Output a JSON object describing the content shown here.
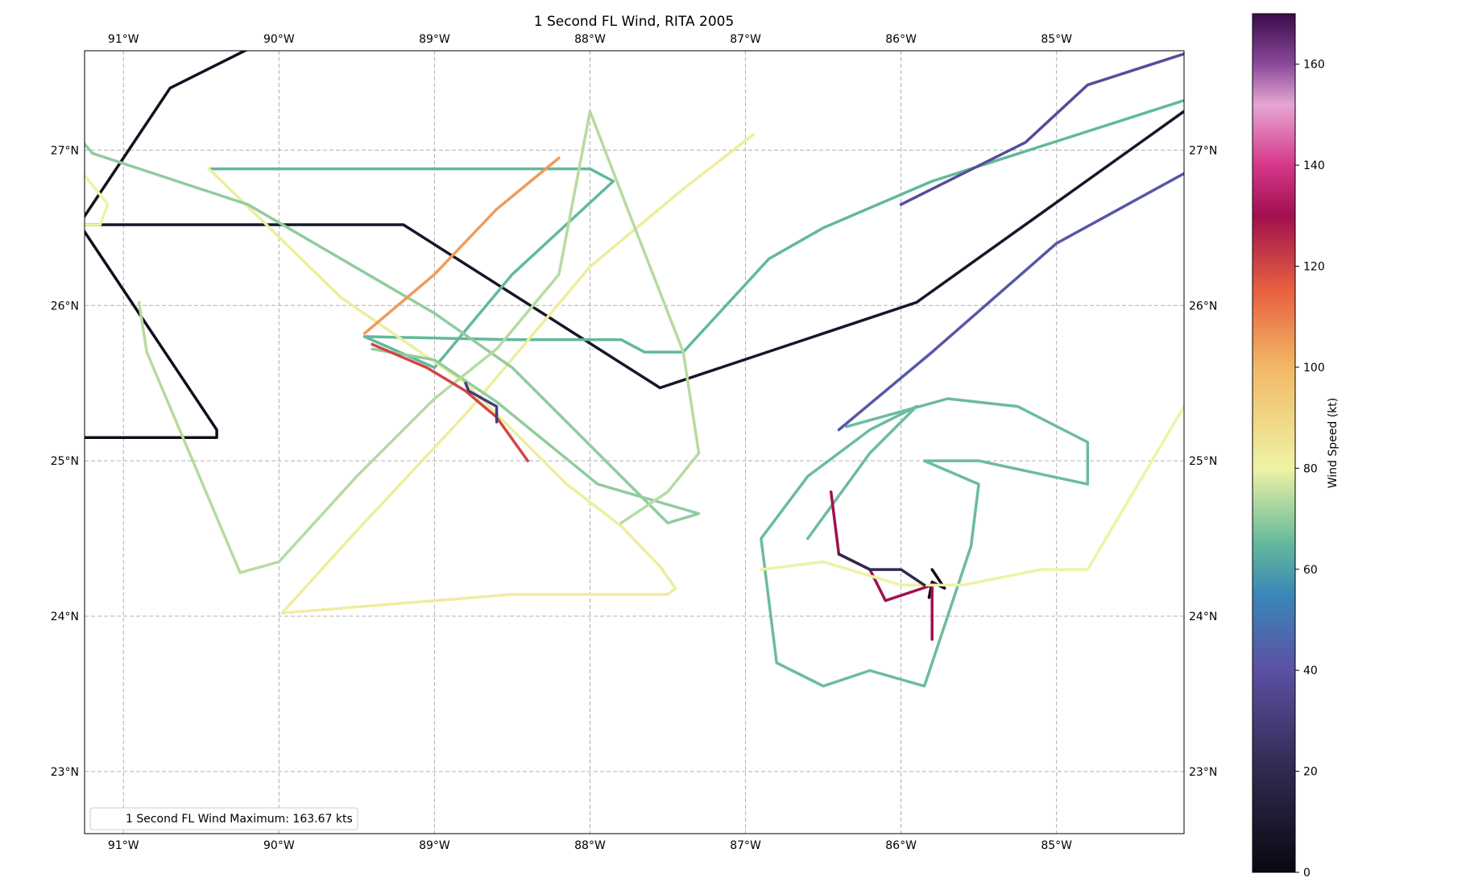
{
  "title": "1 Second FL Wind, RITA 2005",
  "legend_text": "1 Second FL Wind Maximum: 163.67 kts",
  "lon_ticks": [
    {
      "lon": -91,
      "label": "91°W"
    },
    {
      "lon": -90,
      "label": "90°W"
    },
    {
      "lon": -89,
      "label": "89°W"
    },
    {
      "lon": -88,
      "label": "88°W"
    },
    {
      "lon": -87,
      "label": "87°W"
    },
    {
      "lon": -86,
      "label": "86°W"
    },
    {
      "lon": -85,
      "label": "85°W"
    }
  ],
  "lat_ticks": [
    {
      "lat": 27,
      "label": "27°N"
    },
    {
      "lat": 26,
      "label": "26°N"
    },
    {
      "lat": 25,
      "label": "25°N"
    },
    {
      "lat": 24,
      "label": "24°N"
    },
    {
      "lat": 23,
      "label": "23°N"
    }
  ],
  "colorbar": {
    "label": "Wind Speed (kt)",
    "min": 0,
    "max": 170,
    "ticks": [
      0,
      20,
      40,
      60,
      80,
      100,
      120,
      140,
      160
    ],
    "tick_labels": [
      "0",
      "20",
      "40",
      "60",
      "80",
      "100",
      "120",
      "140",
      "160"
    ],
    "stops": [
      {
        "v": 0,
        "color": "#0b0710"
      },
      {
        "v": 20,
        "color": "#2f2a4e"
      },
      {
        "v": 40,
        "color": "#5b50a3"
      },
      {
        "v": 55,
        "color": "#3a87b8"
      },
      {
        "v": 65,
        "color": "#63b89b"
      },
      {
        "v": 80,
        "color": "#eef3a4"
      },
      {
        "v": 100,
        "color": "#f2b866"
      },
      {
        "v": 115,
        "color": "#e8623f"
      },
      {
        "v": 130,
        "color": "#a1104e"
      },
      {
        "v": 140,
        "color": "#d6378a"
      },
      {
        "v": 152,
        "color": "#e6a6d3"
      },
      {
        "v": 160,
        "color": "#8a4a99"
      },
      {
        "v": 170,
        "color": "#3c0a4a"
      }
    ]
  },
  "chart_data": {
    "type": "map",
    "title": "1 Second FL Wind, RITA 2005",
    "xlim": [
      -91.25,
      -84.18
    ],
    "ylim": [
      22.6,
      27.64
    ],
    "grid": true,
    "legend_position": "lower-left",
    "colorbar_range": [
      0,
      170
    ],
    "series": [
      {
        "points": [
          [
            -91.3,
            26.5
          ],
          [
            -90.7,
            27.4
          ],
          [
            -90.2,
            27.65
          ]
        ],
        "speed": 5
      },
      {
        "points": [
          [
            -91.3,
            26.52
          ],
          [
            -89.2,
            26.52
          ],
          [
            -87.55,
            25.47
          ],
          [
            -85.9,
            26.02
          ],
          [
            -84.18,
            27.25
          ]
        ],
        "speed": 8
      },
      {
        "points": [
          [
            -91.3,
            26.55
          ],
          [
            -90.4,
            25.2
          ],
          [
            -90.4,
            25.15
          ],
          [
            -91.3,
            25.15
          ]
        ],
        "speed": 3
      },
      {
        "points": [
          [
            -91.3,
            26.9
          ],
          [
            -91.1,
            26.65
          ],
          [
            -91.15,
            26.52
          ],
          [
            -91.3,
            26.52
          ]
        ],
        "speed": 80
      },
      {
        "points": [
          [
            -85.8,
            24.3
          ],
          [
            -85.72,
            24.18
          ],
          [
            -85.8,
            24.22
          ],
          [
            -85.82,
            24.12
          ]
        ],
        "speed": 3
      },
      {
        "points": [
          [
            -90.45,
            26.88
          ],
          [
            -88.5,
            26.88
          ],
          [
            -88.0,
            26.88
          ],
          [
            -87.85,
            26.8
          ],
          [
            -88.5,
            26.2
          ],
          [
            -89.0,
            25.6
          ],
          [
            -89.45,
            25.8
          ],
          [
            -88.5,
            25.78
          ],
          [
            -87.8,
            25.78
          ],
          [
            -87.65,
            25.7
          ],
          [
            -87.4,
            25.7
          ],
          [
            -86.85,
            26.3
          ],
          [
            -86.5,
            26.5
          ],
          [
            -85.8,
            26.8
          ],
          [
            -84.18,
            27.32
          ]
        ],
        "speed": 65
      },
      {
        "points": [
          [
            -90.45,
            26.88
          ],
          [
            -89.6,
            26.05
          ],
          [
            -88.8,
            25.5
          ],
          [
            -88.4,
            25.1
          ],
          [
            -88.15,
            24.85
          ],
          [
            -87.8,
            24.58
          ],
          [
            -87.55,
            24.32
          ],
          [
            -87.45,
            24.18
          ],
          [
            -87.5,
            24.14
          ],
          [
            -88.5,
            24.14
          ],
          [
            -89.0,
            24.1
          ],
          [
            -89.98,
            24.02
          ],
          [
            -89.5,
            24.55
          ],
          [
            -88.8,
            25.3
          ],
          [
            -88.0,
            26.25
          ],
          [
            -87.4,
            26.75
          ],
          [
            -86.95,
            27.1
          ]
        ],
        "speed": 82
      },
      {
        "points": [
          [
            -91.3,
            27.1
          ],
          [
            -91.2,
            26.98
          ],
          [
            -90.2,
            26.65
          ],
          [
            -89.0,
            25.95
          ],
          [
            -88.5,
            25.6
          ],
          [
            -87.5,
            24.6
          ],
          [
            -87.3,
            24.66
          ],
          [
            -87.95,
            24.85
          ],
          [
            -88.6,
            25.38
          ],
          [
            -89.0,
            25.65
          ],
          [
            -89.4,
            25.72
          ]
        ],
        "speed": 70
      },
      {
        "points": [
          [
            -90.9,
            26.02
          ],
          [
            -90.85,
            25.7
          ],
          [
            -90.25,
            24.28
          ],
          [
            -90.0,
            24.35
          ],
          [
            -89.5,
            24.9
          ],
          [
            -89.0,
            25.4
          ],
          [
            -88.6,
            25.72
          ],
          [
            -88.2,
            26.2
          ],
          [
            -88.0,
            27.25
          ],
          [
            -87.75,
            26.6
          ],
          [
            -87.4,
            25.7
          ],
          [
            -87.3,
            25.05
          ],
          [
            -87.5,
            24.8
          ],
          [
            -87.8,
            24.6
          ]
        ],
        "speed": 74
      },
      {
        "points": [
          [
            -89.45,
            25.82
          ],
          [
            -89.0,
            26.2
          ],
          [
            -88.6,
            26.62
          ],
          [
            -88.2,
            26.95
          ]
        ],
        "speed": 105
      },
      {
        "points": [
          [
            -89.4,
            25.75
          ],
          [
            -89.05,
            25.6
          ],
          [
            -88.8,
            25.45
          ],
          [
            -88.6,
            25.28
          ],
          [
            -88.4,
            25.0
          ]
        ],
        "speed": 120
      },
      {
        "points": [
          [
            -88.8,
            25.5
          ],
          [
            -88.78,
            25.45
          ],
          [
            -88.6,
            25.35
          ],
          [
            -88.6,
            25.25
          ]
        ],
        "speed": 30
      },
      {
        "points": [
          [
            -86.35,
            25.22
          ],
          [
            -85.7,
            25.4
          ],
          [
            -85.25,
            25.35
          ],
          [
            -84.8,
            25.12
          ],
          [
            -84.8,
            24.85
          ],
          [
            -85.5,
            25.0
          ],
          [
            -85.85,
            25.0
          ],
          [
            -85.5,
            24.85
          ],
          [
            -85.55,
            24.45
          ],
          [
            -85.85,
            23.55
          ],
          [
            -86.2,
            23.65
          ],
          [
            -86.5,
            23.55
          ],
          [
            -86.8,
            23.7
          ],
          [
            -86.9,
            24.5
          ],
          [
            -86.6,
            24.9
          ],
          [
            -86.2,
            25.2
          ],
          [
            -85.9,
            25.35
          ],
          [
            -86.2,
            25.05
          ],
          [
            -86.6,
            24.5
          ]
        ],
        "speed": 66
      },
      {
        "points": [
          [
            -86.45,
            24.8
          ],
          [
            -86.4,
            24.4
          ],
          [
            -86.2,
            24.3
          ],
          [
            -86.1,
            24.1
          ],
          [
            -85.8,
            24.2
          ],
          [
            -85.8,
            23.85
          ]
        ],
        "speed": 130
      },
      {
        "points": [
          [
            -86.9,
            24.3
          ],
          [
            -86.5,
            24.35
          ],
          [
            -86.0,
            24.2
          ],
          [
            -85.6,
            24.2
          ],
          [
            -85.1,
            24.3
          ],
          [
            -84.8,
            24.3
          ],
          [
            -84.18,
            25.35
          ]
        ],
        "speed": 80
      },
      {
        "points": [
          [
            -86.4,
            24.4
          ],
          [
            -86.2,
            24.3
          ],
          [
            -86.0,
            24.3
          ],
          [
            -85.85,
            24.2
          ]
        ],
        "speed": 20
      },
      {
        "points": [
          [
            -84.18,
            26.85
          ],
          [
            -85.0,
            26.4
          ],
          [
            -85.8,
            25.7
          ],
          [
            -86.4,
            25.2
          ]
        ],
        "speed": 42
      },
      {
        "points": [
          [
            -86.0,
            26.65
          ],
          [
            -85.2,
            27.05
          ],
          [
            -84.8,
            27.42
          ],
          [
            -84.18,
            27.62
          ]
        ],
        "speed": 38
      }
    ]
  }
}
